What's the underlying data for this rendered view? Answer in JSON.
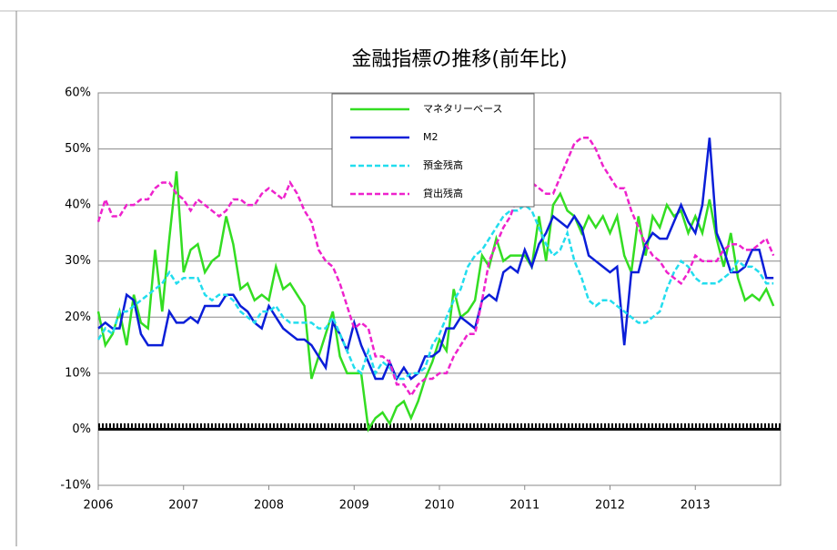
{
  "chart_data": {
    "type": "line",
    "title": "金融指標の推移(前年比)",
    "x": [
      2006,
      2006.083,
      2006.167,
      2006.25,
      2006.333,
      2006.417,
      2006.5,
      2006.583,
      2006.667,
      2006.75,
      2006.833,
      2006.917,
      2007,
      2007.083,
      2007.167,
      2007.25,
      2007.333,
      2007.417,
      2007.5,
      2007.583,
      2007.667,
      2007.75,
      2007.833,
      2007.917,
      2008,
      2008.083,
      2008.167,
      2008.25,
      2008.333,
      2008.417,
      2008.5,
      2008.583,
      2008.667,
      2008.75,
      2008.833,
      2008.917,
      2009,
      2009.083,
      2009.167,
      2009.25,
      2009.333,
      2009.417,
      2009.5,
      2009.583,
      2009.667,
      2009.75,
      2009.833,
      2009.917,
      2010,
      2010.083,
      2010.167,
      2010.25,
      2010.333,
      2010.417,
      2010.5,
      2010.583,
      2010.667,
      2010.75,
      2010.833,
      2010.917,
      2011,
      2011.083,
      2011.167,
      2011.25,
      2011.333,
      2011.417,
      2011.5,
      2011.583,
      2011.667,
      2011.75,
      2011.833,
      2011.917,
      2012,
      2012.083,
      2012.167,
      2012.25,
      2012.333,
      2012.417,
      2012.5,
      2012.583,
      2012.667,
      2012.75,
      2012.833,
      2012.917,
      2013,
      2013.083,
      2013.167,
      2013.25,
      2013.333,
      2013.417,
      2013.5,
      2013.583,
      2013.667,
      2013.75,
      2013.833,
      2013.917
    ],
    "series": [
      {
        "name": "マネタリーベース",
        "color": "#33dd22",
        "dash": false,
        "values": [
          21,
          15,
          17,
          21,
          15,
          24,
          19,
          18,
          32,
          21,
          34,
          46,
          28,
          32,
          33,
          28,
          30,
          31,
          38,
          33,
          25,
          26,
          23,
          24,
          23,
          29,
          25,
          26,
          24,
          22,
          9,
          13,
          17,
          21,
          13,
          10,
          10,
          10,
          0,
          2,
          3,
          1,
          4,
          5,
          2,
          5,
          9,
          12,
          16,
          14,
          25,
          20,
          21,
          23,
          31,
          29,
          34,
          30,
          31,
          31,
          31,
          29,
          38,
          30,
          40,
          42,
          39,
          38,
          35,
          38,
          36,
          38,
          35,
          38,
          31,
          28,
          38,
          31,
          38,
          36,
          40,
          38,
          39,
          35,
          38,
          35,
          41,
          34,
          29,
          35,
          27,
          23,
          24,
          23,
          25,
          22
        ]
      },
      {
        "name": "M2",
        "color": "#0a1ed8",
        "dash": false,
        "values": [
          18,
          19,
          18,
          18,
          24,
          23,
          17,
          15,
          15,
          15,
          21,
          19,
          19,
          20,
          19,
          22,
          22,
          22,
          24,
          24,
          22,
          21,
          19,
          18,
          22,
          20,
          18,
          17,
          16,
          16,
          15,
          13,
          11,
          19,
          17,
          14,
          19,
          15,
          12,
          9,
          9,
          12,
          9,
          11,
          9,
          10,
          13,
          13,
          14,
          18,
          18,
          20,
          19,
          18,
          23,
          24,
          23,
          28,
          29,
          28,
          32,
          29,
          33,
          35,
          38,
          37,
          36,
          38,
          36,
          31,
          30,
          29,
          28,
          29,
          15,
          28,
          28,
          33,
          35,
          34,
          34,
          37,
          40,
          37,
          35,
          40,
          52,
          35,
          32,
          28,
          28,
          29,
          32,
          32,
          27,
          27
        ]
      },
      {
        "name": "預金残高",
        "color": "#22ddee",
        "dash": true,
        "values": [
          16,
          18,
          17,
          21,
          21,
          22,
          23,
          24,
          25,
          26,
          28,
          26,
          27,
          27,
          27,
          24,
          23,
          24,
          24,
          23,
          21,
          20,
          19,
          21,
          21,
          22,
          20,
          19,
          19,
          19,
          19,
          18,
          18,
          20,
          17,
          14,
          11,
          10,
          14,
          10,
          12,
          11,
          9,
          9,
          10,
          10,
          11,
          15,
          17,
          20,
          23,
          25,
          29,
          31,
          32,
          34,
          36,
          38,
          39,
          39,
          40,
          39,
          36,
          33,
          31,
          32,
          35,
          30,
          27,
          23,
          22,
          23,
          23,
          22,
          21,
          20,
          19,
          19,
          20,
          21,
          25,
          28,
          30,
          29,
          27,
          26,
          26,
          26,
          27,
          28,
          30,
          29,
          29,
          28,
          26,
          26
        ]
      },
      {
        "name": "貸出残高",
        "color": "#ee22cc",
        "dash": true,
        "values": [
          37,
          41,
          38,
          38,
          40,
          40,
          41,
          41,
          43,
          44,
          44,
          42,
          41,
          39,
          41,
          40,
          39,
          38,
          39,
          41,
          41,
          40,
          40,
          42,
          43,
          42,
          41,
          44,
          42,
          39,
          37,
          32,
          30,
          29,
          26,
          22,
          18,
          19,
          18,
          13,
          13,
          12,
          8,
          8,
          6,
          8,
          9,
          9,
          10,
          10,
          13,
          15,
          17,
          17,
          23,
          30,
          33,
          36,
          38,
          42,
          43,
          44,
          43,
          42,
          42,
          45,
          48,
          51,
          52,
          52,
          50,
          47,
          45,
          43,
          43,
          39,
          36,
          33,
          31,
          30,
          28,
          27,
          26,
          28,
          31,
          30,
          30,
          30,
          32,
          33,
          33,
          32,
          32,
          33,
          34,
          31
        ]
      }
    ],
    "xlim": [
      2006,
      2014
    ],
    "xticks": [
      2006,
      2007,
      2008,
      2009,
      2010,
      2011,
      2012,
      2013
    ],
    "ylim": [
      -10,
      60
    ],
    "yticks": [
      {
        "value": -10,
        "label": "-10%"
      },
      {
        "value": 0,
        "label": "0%"
      },
      {
        "value": 10,
        "label": "10%"
      },
      {
        "value": 20,
        "label": "20%"
      },
      {
        "value": 30,
        "label": "30%"
      },
      {
        "value": 40,
        "label": "40%"
      },
      {
        "value": 50,
        "label": "50%"
      },
      {
        "value": 60,
        "label": "60%"
      }
    ],
    "grid": true
  }
}
